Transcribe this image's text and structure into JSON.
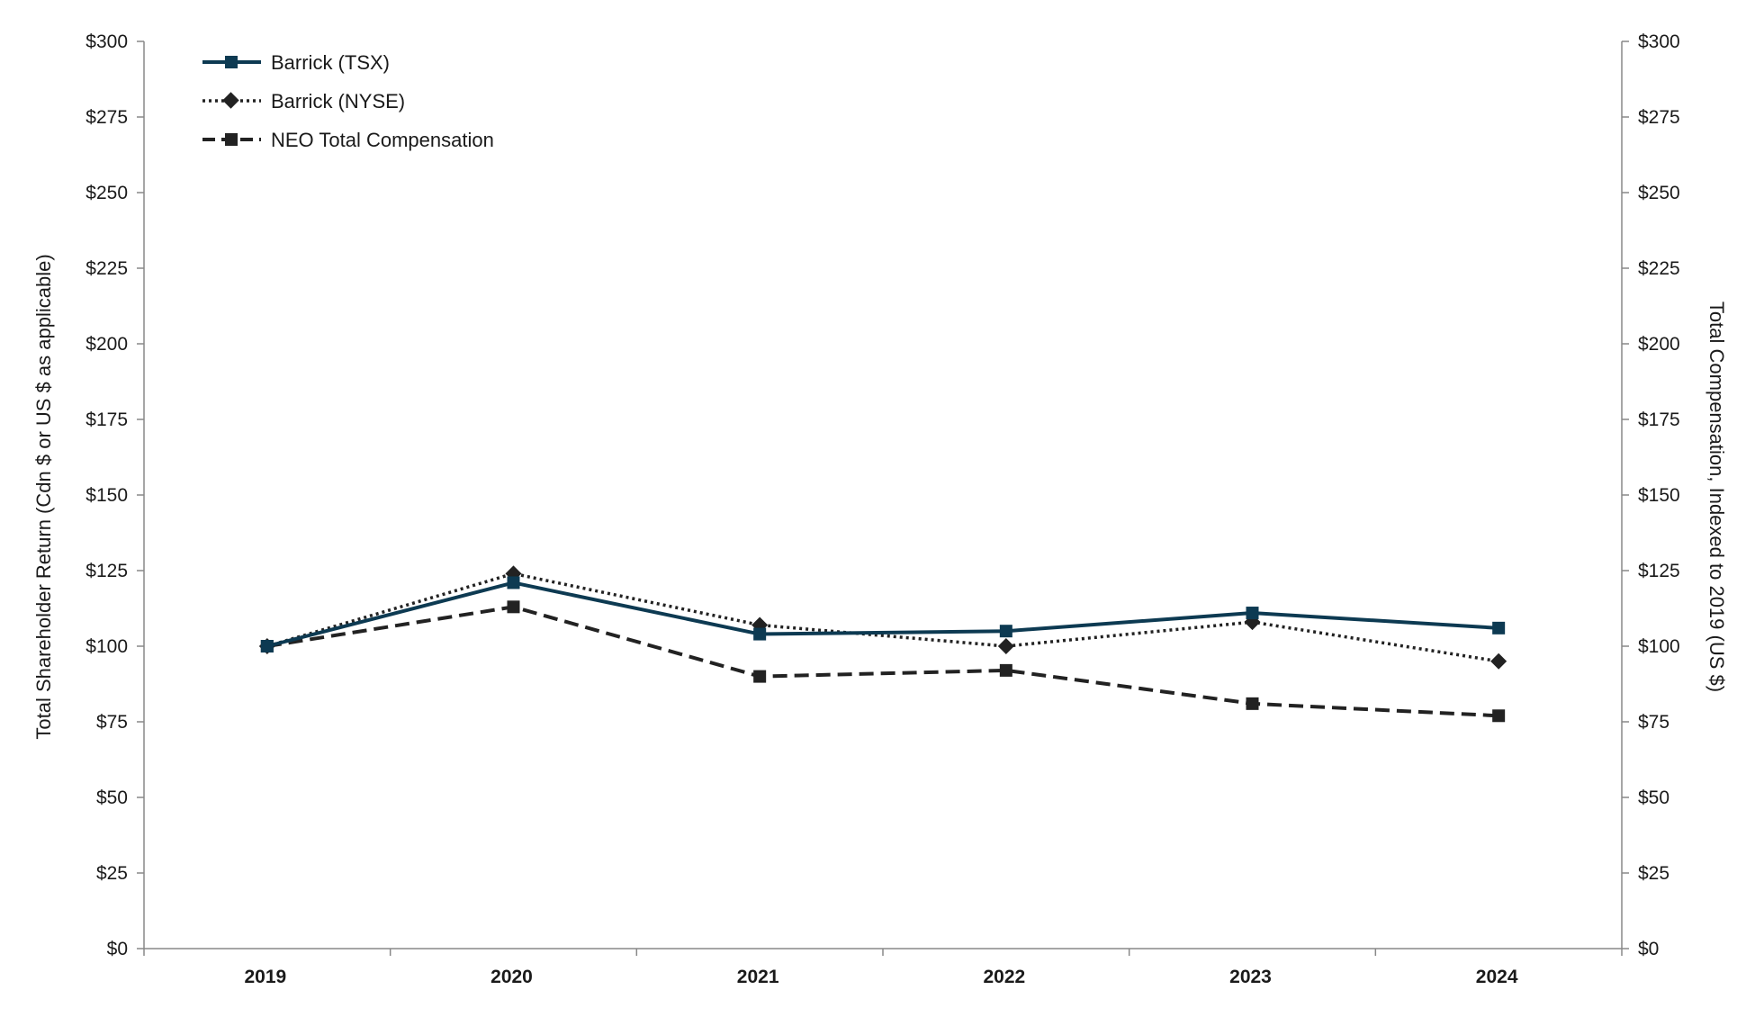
{
  "chart_data": {
    "type": "line",
    "categories": [
      "2019",
      "2020",
      "2021",
      "2022",
      "2023",
      "2024"
    ],
    "series": [
      {
        "name": "Barrick (TSX)",
        "values": [
          100,
          121,
          104,
          105,
          111,
          106
        ],
        "color": "#0d3a52",
        "line_style": "solid",
        "marker": "square",
        "axis": "left"
      },
      {
        "name": "Barrick (NYSE)",
        "values": [
          100,
          124,
          107,
          100,
          108,
          95
        ],
        "color": "#222222",
        "line_style": "dotted",
        "marker": "diamond",
        "axis": "left"
      },
      {
        "name": "NEO Total Compensation",
        "values": [
          100,
          113,
          90,
          92,
          81,
          77
        ],
        "color": "#222222",
        "line_style": "dashed",
        "marker": "square",
        "axis": "right"
      }
    ],
    "ylabel": "Total Shareholder Return (Cdn $ or US $ as applicable)",
    "y2label": "Total Compensation, Indexed to 2019 (US $)",
    "ylim": [
      0,
      300
    ],
    "y2lim": [
      0,
      300
    ],
    "y_ticks": [
      "$0",
      "$25",
      "$50",
      "$75",
      "$100",
      "$125",
      "$150",
      "$175",
      "$200",
      "$225",
      "$250",
      "$275",
      "$300"
    ],
    "y2_ticks": [
      "$0",
      "$25",
      "$50",
      "$75",
      "$100",
      "$125",
      "$150",
      "$175",
      "$200",
      "$225",
      "$250",
      "$275",
      "$300"
    ],
    "grid": false,
    "legend": "top-left",
    "axis_color": "#888888"
  }
}
